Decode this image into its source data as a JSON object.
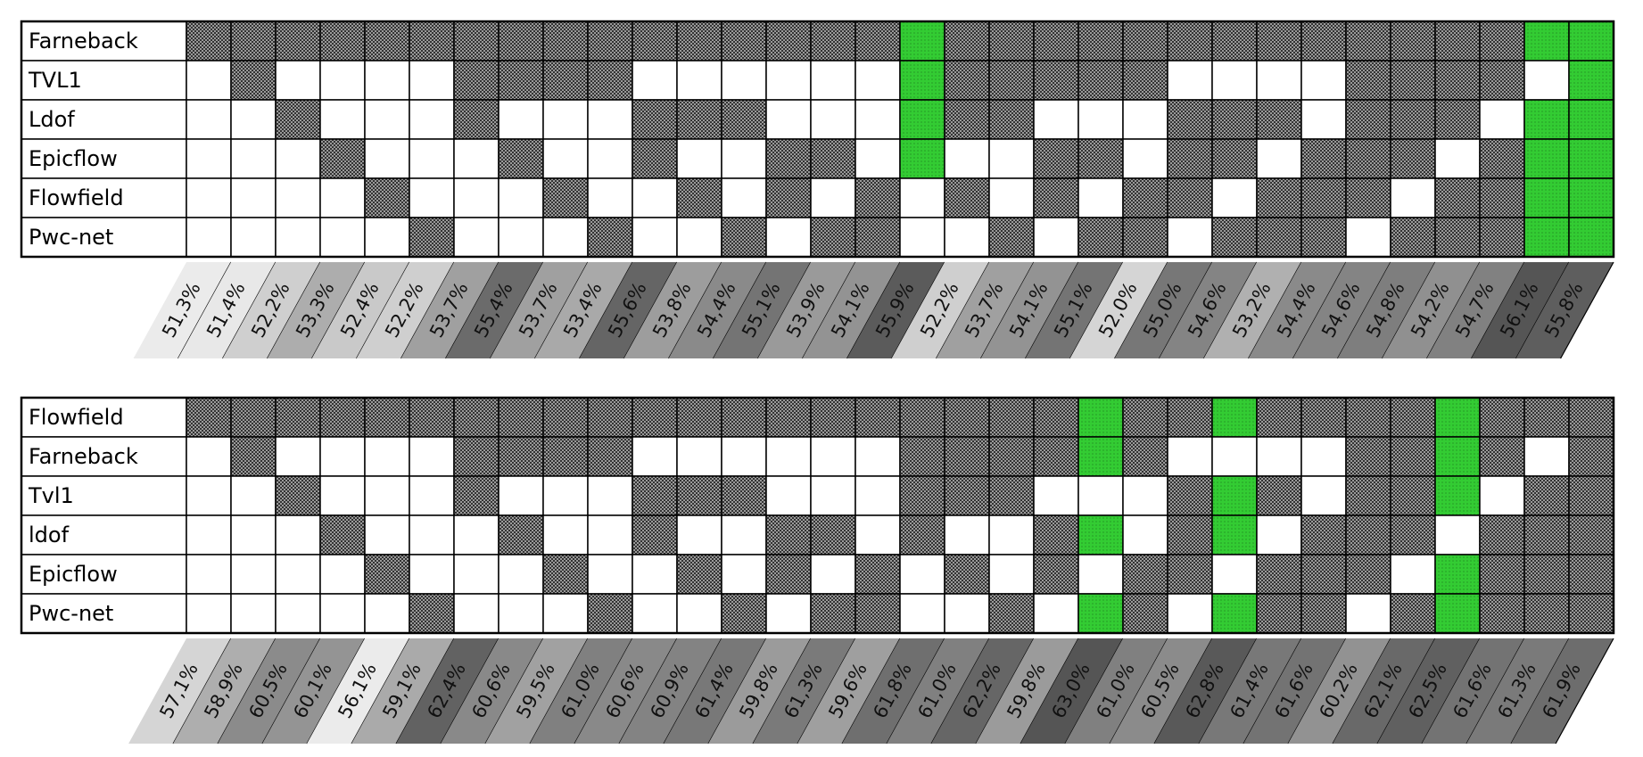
{
  "chart_data": [
    {
      "type": "combination",
      "rows": [
        "Farneback",
        "TVL1",
        "Ldof",
        "Epicflow",
        "Flowfield",
        "Pwc-net"
      ],
      "values": [
        51.3,
        51.4,
        52.2,
        53.3,
        52.4,
        52.2,
        53.7,
        55.4,
        53.7,
        53.4,
        55.6,
        53.8,
        54.4,
        55.1,
        53.9,
        54.1,
        55.9,
        52.2,
        53.7,
        54.1,
        55.1,
        52.0,
        55.0,
        54.6,
        53.2,
        54.4,
        54.6,
        54.8,
        54.2,
        54.7,
        56.1,
        55.8
      ],
      "value_labels": [
        "51,3%",
        "51,4%",
        "52,2%",
        "53,3%",
        "52,4%",
        "52,2%",
        "53,7%",
        "55,4%",
        "53,7%",
        "53,4%",
        "55,6%",
        "53,8%",
        "54,4%",
        "55,1%",
        "53,9%",
        "54,1%",
        "55,9%",
        "52,2%",
        "53,7%",
        "54,1%",
        "55,1%",
        "52,0%",
        "55,0%",
        "54,6%",
        "53,2%",
        "54,4%",
        "54,6%",
        "54,8%",
        "54,2%",
        "54,7%",
        "56,1%",
        "55,8%"
      ],
      "highlight_top": 3,
      "highlight_color": "#33cc33"
    },
    {
      "type": "combination",
      "rows": [
        "Flowfield",
        "Farneback",
        "Tvl1",
        "ldof",
        "Epicflow",
        "Pwc-net"
      ],
      "values": [
        57.1,
        58.9,
        60.5,
        60.1,
        56.1,
        59.1,
        62.4,
        60.6,
        59.5,
        61.0,
        60.6,
        60.9,
        61.4,
        59.8,
        61.3,
        59.6,
        61.8,
        61.0,
        62.2,
        59.8,
        63.0,
        61.0,
        60.5,
        62.8,
        61.4,
        61.6,
        60.2,
        62.1,
        62.5,
        61.6,
        61.3,
        61.9
      ],
      "value_labels": [
        "57,1%",
        "58,9%",
        "60,5%",
        "60,1%",
        "56,1%",
        "59,1%",
        "62,4%",
        "60,6%",
        "59,5%",
        "61,0%",
        "60,6%",
        "60,9%",
        "61,4%",
        "59,8%",
        "61,3%",
        "59,6%",
        "61,8%",
        "61,0%",
        "62,2%",
        "59,8%",
        "63,0%",
        "61,0%",
        "60,5%",
        "62,8%",
        "61,4%",
        "61,6%",
        "60,2%",
        "62,1%",
        "62,5%",
        "61,6%",
        "61,3%",
        "61,9%"
      ],
      "highlight_top": 3,
      "highlight_color": "#33cc33"
    }
  ]
}
